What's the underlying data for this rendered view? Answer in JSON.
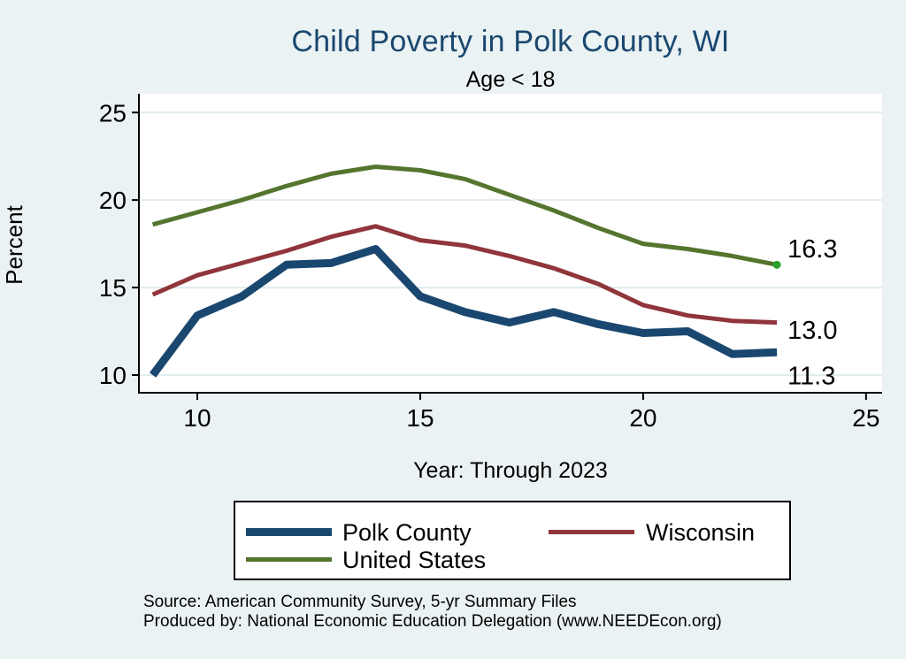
{
  "title": "Child Poverty in Polk County, WI",
  "subtitle": "Age < 18",
  "colors": {
    "background": "#eaf2f3",
    "plot_background": "#ffffff",
    "gridline": "#e1ebee",
    "axis": "#000000",
    "title_text": "#1a476f",
    "end_dot": "#2aa22a"
  },
  "chart_data": {
    "type": "line",
    "title": "Child Poverty in Polk County, WI",
    "subtitle": "Age < 18",
    "xlabel": "Year: Through 2023",
    "ylabel": "Percent",
    "x": [
      9,
      10,
      11,
      12,
      13,
      14,
      15,
      16,
      17,
      18,
      19,
      20,
      21,
      22,
      23
    ],
    "x_note": "years 2009-2023 shown as 2-digit year numbers on axis",
    "xticks": [
      "10",
      "15",
      "20",
      "25"
    ],
    "yticks": [
      "10",
      "15",
      "20",
      "25"
    ],
    "xlim": [
      8.69,
      25.36
    ],
    "ylim": [
      8.99,
      26.07
    ],
    "grid": "horizontal-only",
    "legend_position": "bottom",
    "series": [
      {
        "name": "Polk County",
        "color": "#1a476f",
        "width": 9,
        "values": [
          10.0,
          13.4,
          14.5,
          16.3,
          16.4,
          17.2,
          14.5,
          13.6,
          13.0,
          13.6,
          12.9,
          12.4,
          12.5,
          11.2,
          11.3
        ],
        "end_label": "11.3",
        "end_label_at": 10.0,
        "end_marker": false
      },
      {
        "name": "Wisconsin",
        "color": "#90353b",
        "width": 5,
        "values": [
          14.6,
          15.7,
          16.4,
          17.1,
          17.9,
          18.5,
          17.7,
          17.4,
          16.8,
          16.1,
          15.2,
          14.0,
          13.4,
          13.1,
          13.0
        ],
        "end_label": "13.0",
        "end_label_at": 12.6,
        "end_marker": false
      },
      {
        "name": "United States",
        "color": "#55752f",
        "width": 5,
        "values": [
          18.6,
          19.3,
          20.0,
          20.8,
          21.5,
          21.9,
          21.7,
          21.2,
          20.3,
          19.4,
          18.4,
          17.5,
          17.2,
          16.8,
          16.3
        ],
        "end_label": "16.3",
        "end_label_at": 17.25,
        "end_marker": true
      }
    ]
  },
  "legend": {
    "items": [
      {
        "label": "Polk County"
      },
      {
        "label": "Wisconsin"
      },
      {
        "label": "United States"
      }
    ]
  },
  "footer": {
    "source": "Source: American Community Survey, 5-yr Summary Files",
    "produced_by": "Produced by: National Economic Education Delegation (www.NEEDEcon.org)"
  }
}
